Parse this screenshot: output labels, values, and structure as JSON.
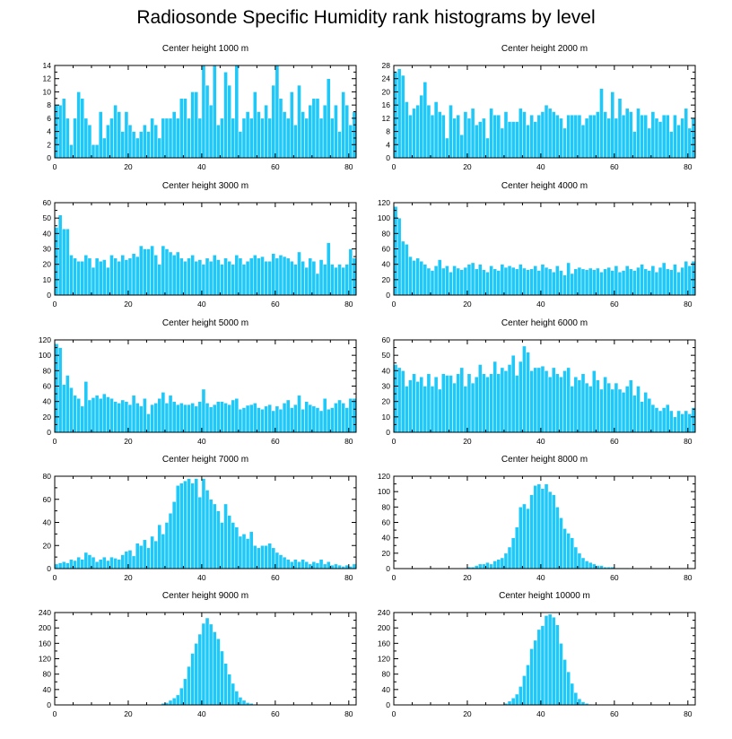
{
  "title": "Radiosonde Specific Humidity rank histograms by level",
  "colors": {
    "bar": "#1ec8f8",
    "bar_edge": "#ffffff",
    "axis": "#000000"
  },
  "chart_data": [
    {
      "type": "bar",
      "title": "Center height 1000 m",
      "xlim": [
        0,
        82
      ],
      "ylim": [
        0,
        14
      ],
      "xticks": [
        0,
        20,
        40,
        60,
        80
      ],
      "yticks": [
        0,
        2,
        4,
        6,
        8,
        10,
        12,
        14
      ],
      "values": [
        8,
        8,
        9,
        6,
        2,
        6,
        10,
        9,
        6,
        5,
        2,
        2,
        7,
        3,
        5,
        6,
        8,
        7,
        4,
        7,
        5,
        4,
        3,
        4,
        5,
        4,
        6,
        5,
        3,
        6,
        6,
        6,
        7,
        6,
        9,
        9,
        6,
        10,
        10,
        6,
        14,
        11,
        8,
        14,
        5,
        6,
        13,
        11,
        6,
        14,
        4,
        6,
        7,
        6,
        10,
        7,
        6,
        8,
        6,
        11,
        14,
        9,
        7,
        6,
        10,
        5,
        11,
        7,
        6,
        8,
        9,
        9,
        6,
        8,
        12,
        6,
        8,
        4,
        10,
        8,
        5,
        7
      ]
    },
    {
      "type": "bar",
      "title": "Center height 2000 m",
      "xlim": [
        0,
        82
      ],
      "ylim": [
        0,
        28
      ],
      "xticks": [
        0,
        20,
        40,
        60,
        80
      ],
      "yticks": [
        0,
        4,
        8,
        12,
        16,
        20,
        24,
        28
      ],
      "values": [
        26,
        27,
        25,
        17,
        13,
        15,
        16,
        19,
        23,
        16,
        13,
        17,
        14,
        13,
        6,
        16,
        12,
        13,
        7,
        14,
        12,
        15,
        10,
        11,
        12,
        6,
        15,
        13,
        13,
        9,
        14,
        11,
        11,
        11,
        15,
        14,
        10,
        13,
        11,
        13,
        14,
        16,
        15,
        14,
        13,
        12,
        9,
        13,
        13,
        13,
        13,
        10,
        12,
        13,
        13,
        14,
        21,
        14,
        12,
        20,
        12,
        18,
        13,
        15,
        14,
        8,
        15,
        13,
        13,
        9,
        14,
        12,
        11,
        13,
        13,
        8,
        13,
        10,
        12,
        15,
        9,
        12
      ]
    },
    {
      "type": "bar",
      "title": "Center height 3000 m",
      "xlim": [
        0,
        82
      ],
      "ylim": [
        0,
        60
      ],
      "xticks": [
        0,
        20,
        40,
        60,
        80
      ],
      "yticks": [
        0,
        10,
        20,
        30,
        40,
        50,
        60
      ],
      "values": [
        44,
        52,
        43,
        43,
        26,
        24,
        22,
        22,
        26,
        24,
        18,
        24,
        22,
        23,
        18,
        26,
        24,
        22,
        26,
        23,
        24,
        27,
        25,
        32,
        30,
        30,
        32,
        26,
        20,
        32,
        30,
        28,
        26,
        28,
        24,
        22,
        24,
        26,
        22,
        23,
        20,
        24,
        22,
        26,
        23,
        20,
        24,
        22,
        20,
        26,
        24,
        20,
        22,
        24,
        26,
        24,
        25,
        22,
        22,
        27,
        24,
        26,
        25,
        24,
        22,
        20,
        28,
        22,
        18,
        24,
        22,
        14,
        23,
        20,
        34,
        20,
        18,
        20,
        18,
        20,
        30,
        24
      ]
    },
    {
      "type": "bar",
      "title": "Center height 4000 m",
      "xlim": [
        0,
        82
      ],
      "ylim": [
        0,
        120
      ],
      "xticks": [
        0,
        20,
        40,
        60,
        80
      ],
      "yticks": [
        0,
        20,
        40,
        60,
        80,
        100,
        120
      ],
      "values": [
        115,
        100,
        70,
        66,
        50,
        45,
        48,
        44,
        40,
        35,
        32,
        38,
        46,
        35,
        38,
        30,
        38,
        35,
        33,
        36,
        40,
        42,
        34,
        40,
        33,
        30,
        38,
        34,
        32,
        40,
        36,
        38,
        36,
        34,
        40,
        35,
        33,
        34,
        38,
        32,
        40,
        36,
        34,
        30,
        38,
        32,
        26,
        42,
        28,
        34,
        36,
        34,
        33,
        35,
        33,
        35,
        30,
        34,
        36,
        32,
        38,
        30,
        32,
        38,
        34,
        32,
        36,
        40,
        34,
        32,
        38,
        30,
        36,
        42,
        34,
        33,
        40,
        30,
        36,
        44,
        38,
        44
      ]
    },
    {
      "type": "bar",
      "title": "Center height 5000 m",
      "xlim": [
        0,
        82
      ],
      "ylim": [
        0,
        120
      ],
      "xticks": [
        0,
        20,
        40,
        60,
        80
      ],
      "yticks": [
        0,
        20,
        40,
        60,
        80,
        100,
        120
      ],
      "values": [
        115,
        110,
        62,
        74,
        58,
        48,
        44,
        34,
        66,
        42,
        45,
        48,
        44,
        50,
        46,
        44,
        40,
        38,
        42,
        40,
        36,
        48,
        38,
        34,
        44,
        24,
        36,
        38,
        44,
        52,
        38,
        48,
        40,
        36,
        38,
        36,
        36,
        38,
        34,
        40,
        56,
        38,
        33,
        36,
        40,
        40,
        38,
        36,
        42,
        44,
        30,
        32,
        35,
        36,
        38,
        32,
        30,
        34,
        36,
        28,
        34,
        30,
        38,
        42,
        32,
        36,
        48,
        30,
        40,
        36,
        34,
        32,
        28,
        44,
        30,
        32,
        38,
        42,
        38,
        32,
        44,
        44
      ]
    },
    {
      "type": "bar",
      "title": "Center height 6000 m",
      "xlim": [
        0,
        82
      ],
      "ylim": [
        0,
        60
      ],
      "xticks": [
        0,
        20,
        40,
        60,
        80
      ],
      "yticks": [
        0,
        10,
        20,
        30,
        40,
        50,
        60
      ],
      "values": [
        44,
        42,
        40,
        30,
        34,
        38,
        33,
        36,
        30,
        38,
        30,
        36,
        28,
        38,
        37,
        37,
        32,
        38,
        42,
        30,
        38,
        32,
        36,
        44,
        38,
        36,
        38,
        46,
        38,
        42,
        40,
        44,
        50,
        37,
        46,
        56,
        52,
        40,
        42,
        42,
        43,
        40,
        36,
        42,
        38,
        36,
        40,
        42,
        30,
        36,
        34,
        38,
        32,
        30,
        40,
        34,
        28,
        36,
        32,
        28,
        32,
        28,
        26,
        30,
        34,
        24,
        30,
        20,
        26,
        22,
        18,
        16,
        14,
        16,
        18,
        14,
        10,
        14,
        12,
        14,
        12,
        16
      ]
    },
    {
      "type": "bar",
      "title": "Center height 7000 m",
      "xlim": [
        0,
        82
      ],
      "ylim": [
        0,
        80
      ],
      "xticks": [
        0,
        20,
        40,
        60,
        80
      ],
      "yticks": [
        0,
        20,
        40,
        60,
        80
      ],
      "values": [
        4,
        5,
        6,
        5,
        8,
        7,
        10,
        8,
        14,
        12,
        10,
        6,
        8,
        10,
        7,
        10,
        9,
        8,
        12,
        15,
        16,
        11,
        22,
        20,
        25,
        18,
        28,
        24,
        38,
        30,
        40,
        48,
        58,
        72,
        74,
        76,
        78,
        74,
        78,
        62,
        78,
        68,
        60,
        56,
        50,
        40,
        56,
        46,
        40,
        36,
        28,
        30,
        26,
        32,
        20,
        18,
        20,
        20,
        22,
        18,
        14,
        12,
        10,
        8,
        6,
        8,
        6,
        8,
        6,
        4,
        6,
        5,
        8,
        4,
        6,
        3,
        4,
        3,
        2,
        3,
        2,
        4
      ]
    },
    {
      "type": "bar",
      "title": "Center height 8000 m",
      "xlim": [
        0,
        82
      ],
      "ylim": [
        0,
        120
      ],
      "xticks": [
        0,
        20,
        40,
        60,
        80
      ],
      "yticks": [
        0,
        20,
        40,
        60,
        80,
        100,
        120
      ],
      "values": [
        0,
        0,
        0,
        0,
        0,
        0,
        0,
        0,
        0,
        0,
        0,
        0,
        0,
        0,
        0,
        0,
        0,
        0,
        0,
        1,
        2,
        2,
        4,
        6,
        6,
        8,
        6,
        10,
        12,
        14,
        20,
        28,
        40,
        54,
        80,
        84,
        78,
        96,
        108,
        110,
        104,
        110,
        100,
        96,
        80,
        66,
        52,
        46,
        40,
        28,
        20,
        14,
        10,
        8,
        6,
        4,
        4,
        2,
        2,
        2,
        1,
        1,
        1,
        1,
        0,
        0,
        0,
        0,
        0,
        0,
        0,
        0,
        0,
        0,
        0,
        0,
        0,
        0,
        0,
        0,
        0,
        0
      ]
    },
    {
      "type": "bar",
      "title": "Center height 9000 m",
      "xlim": [
        0,
        82
      ],
      "ylim": [
        0,
        240
      ],
      "xticks": [
        0,
        20,
        40,
        60,
        80
      ],
      "yticks": [
        0,
        40,
        80,
        120,
        160,
        200,
        240
      ],
      "values": [
        0,
        0,
        0,
        0,
        0,
        0,
        0,
        0,
        0,
        0,
        0,
        0,
        0,
        0,
        0,
        0,
        0,
        0,
        0,
        0,
        0,
        0,
        0,
        0,
        0,
        0,
        0,
        0,
        0,
        4,
        6,
        12,
        18,
        26,
        44,
        68,
        100,
        134,
        160,
        184,
        212,
        226,
        210,
        190,
        172,
        140,
        108,
        80,
        56,
        36,
        20,
        12,
        6,
        4,
        2,
        0,
        0,
        0,
        0,
        0,
        0,
        0,
        0,
        0,
        0,
        0,
        0,
        0,
        0,
        0,
        0,
        0,
        0,
        0,
        0,
        0,
        0,
        0,
        0,
        0,
        0,
        0
      ]
    },
    {
      "type": "bar",
      "title": "Center height 10000 m",
      "xlim": [
        0,
        82
      ],
      "ylim": [
        0,
        240
      ],
      "xticks": [
        0,
        20,
        40,
        60,
        80
      ],
      "yticks": [
        0,
        40,
        80,
        120,
        160,
        200,
        240
      ],
      "values": [
        0,
        0,
        0,
        0,
        0,
        0,
        0,
        0,
        0,
        0,
        0,
        0,
        0,
        0,
        0,
        0,
        0,
        0,
        0,
        0,
        0,
        0,
        0,
        0,
        0,
        0,
        0,
        0,
        0,
        0,
        4,
        10,
        18,
        28,
        48,
        76,
        104,
        146,
        168,
        196,
        206,
        232,
        236,
        228,
        208,
        160,
        118,
        86,
        56,
        32,
        16,
        8,
        4,
        2,
        0,
        0,
        0,
        0,
        0,
        0,
        0,
        0,
        0,
        0,
        0,
        0,
        0,
        0,
        0,
        0,
        0,
        0,
        0,
        0,
        0,
        0,
        0,
        0,
        0,
        0,
        0,
        0
      ]
    }
  ]
}
